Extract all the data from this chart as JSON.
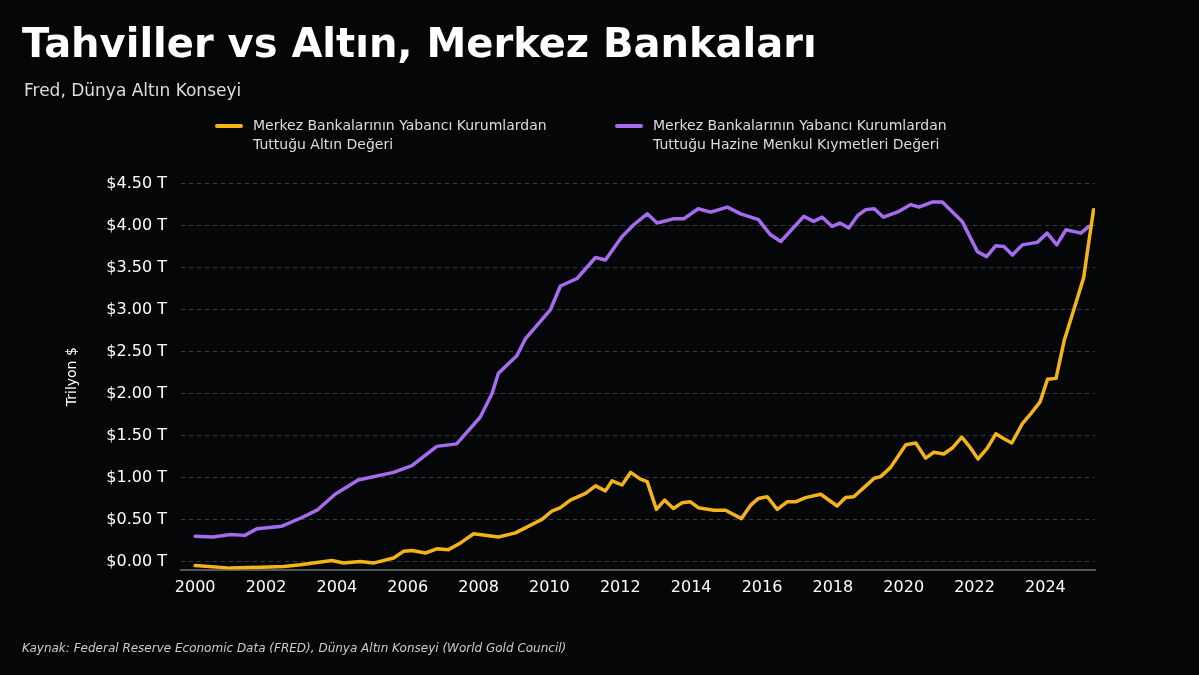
{
  "chart_data": {
    "type": "line",
    "title": "Tahviller vs Altın, Merkez Bankaları",
    "subtitle": "Fred, Dünya Altın Konseyi",
    "ylabel": "Trilyon $",
    "annotations": [
      "Kaynak: Federal Reserve Economic Data (FRED), Dünya Altın Konseyi (World Gold Council)"
    ],
    "xlim": [
      1999.6,
      2025.4
    ],
    "xticks": [
      2000,
      2002,
      2004,
      2006,
      2008,
      2010,
      2012,
      2014,
      2016,
      2018,
      2020,
      2022,
      2024
    ],
    "ylim": [
      -0.1,
      4.5
    ],
    "yticks": [
      {
        "value": 0,
        "label": "$0.00 T"
      },
      {
        "value": 0.5,
        "label": "$0.50 T"
      },
      {
        "value": 1,
        "label": "$1.00 T"
      },
      {
        "value": 1.5,
        "label": "$1.50 T"
      },
      {
        "value": 2,
        "label": "$2.00 T"
      },
      {
        "value": 2.5,
        "label": "$2.50 T"
      },
      {
        "value": 3,
        "label": "$3.00 T"
      },
      {
        "value": 3.5,
        "label": "$3.50 T"
      },
      {
        "value": 4,
        "label": "$4.00 T"
      },
      {
        "value": 4.5,
        "label": "$4.50 T"
      }
    ],
    "grid": "y",
    "legend": "top",
    "marker": "none",
    "line_style": "solid",
    "series": [
      {
        "name": "Merkez Bankalarının Yabancı Kurumlardan Tuttuğu Altın Değeri",
        "color": "#f5b31a",
        "x": [
          2000.0,
          2001.0,
          2002.5,
          2002.97,
          2003.86,
          2004.19,
          2004.66,
          2005.03,
          2005.6,
          2005.88,
          2006.12,
          2006.5,
          2006.82,
          2007.15,
          2007.49,
          2007.86,
          2008.56,
          2009.04,
          2009.32,
          2009.6,
          2009.79,
          2010.07,
          2010.31,
          2010.59,
          2011.02,
          2011.3,
          2011.58,
          2011.77,
          2012.05,
          2012.29,
          2012.57,
          2012.76,
          2013.02,
          2013.25,
          2013.5,
          2013.75,
          2013.98,
          2014.2,
          2014.64,
          2014.97,
          2015.42,
          2015.68,
          2015.9,
          2016.15,
          2016.43,
          2016.71,
          2016.95,
          2017.23,
          2017.66,
          2018.12,
          2018.36,
          2018.59,
          2018.93,
          2019.17,
          2019.35,
          2019.63,
          2020.06,
          2020.34,
          2020.62,
          2020.85,
          2021.13,
          2021.37,
          2021.64,
          2021.87,
          2022.1,
          2022.36,
          2022.6,
          2022.83,
          2023.05,
          2023.35,
          2023.59,
          2023.85,
          2024.06,
          2024.3,
          2024.53,
          2024.81,
          2025.08,
          2025.23,
          2025.36
        ],
        "values": [
          -0.05,
          -0.08,
          -0.06,
          -0.04,
          0.01,
          -0.02,
          0.0,
          -0.02,
          0.04,
          0.12,
          0.13,
          0.1,
          0.15,
          0.14,
          0.22,
          0.33,
          0.29,
          0.34,
          0.4,
          0.46,
          0.5,
          0.6,
          0.64,
          0.73,
          0.81,
          0.9,
          0.84,
          0.96,
          0.91,
          1.06,
          0.98,
          0.95,
          0.62,
          0.73,
          0.63,
          0.7,
          0.71,
          0.64,
          0.61,
          0.61,
          0.51,
          0.67,
          0.75,
          0.77,
          0.62,
          0.71,
          0.71,
          0.76,
          0.8,
          0.66,
          0.76,
          0.77,
          0.9,
          0.99,
          1.01,
          1.12,
          1.39,
          1.41,
          1.23,
          1.3,
          1.28,
          1.35,
          1.48,
          1.36,
          1.22,
          1.35,
          1.52,
          1.46,
          1.41,
          1.64,
          1.76,
          1.9,
          2.17,
          2.18,
          2.63,
          3.01,
          3.38,
          3.82,
          4.19
        ]
      },
      {
        "name": "Merkez Bankalarının Yabancı Kurumlardan Tuttuğu Hazine Menkul Kıymetleri Değeri",
        "color": "#a66cf0",
        "x": [
          2000.0,
          2000.5,
          2001.0,
          2001.4,
          2001.75,
          2002.45,
          2003.0,
          2003.44,
          2003.95,
          2004.6,
          2005.6,
          2006.12,
          2006.82,
          2007.38,
          2008.05,
          2008.38,
          2008.56,
          2009.08,
          2009.32,
          2010.03,
          2010.31,
          2010.78,
          2011.3,
          2011.58,
          2012.05,
          2012.38,
          2012.76,
          2013.04,
          2013.5,
          2013.79,
          2014.2,
          2014.55,
          2015.02,
          2015.4,
          2015.9,
          2016.24,
          2016.53,
          2017.18,
          2017.46,
          2017.7,
          2017.98,
          2018.2,
          2018.45,
          2018.7,
          2018.93,
          2019.17,
          2019.43,
          2019.87,
          2020.2,
          2020.43,
          2020.8,
          2021.09,
          2021.65,
          2022.08,
          2022.34,
          2022.6,
          2022.83,
          2023.07,
          2023.35,
          2023.77,
          2024.05,
          2024.32,
          2024.58,
          2025.0,
          2025.23
        ],
        "values": [
          0.3,
          0.29,
          0.32,
          0.31,
          0.39,
          0.42,
          0.52,
          0.61,
          0.8,
          0.97,
          1.06,
          1.14,
          1.37,
          1.4,
          1.72,
          2.0,
          2.24,
          2.45,
          2.65,
          3.0,
          3.28,
          3.37,
          3.62,
          3.59,
          3.87,
          4.01,
          4.14,
          4.03,
          4.08,
          4.08,
          4.2,
          4.16,
          4.22,
          4.14,
          4.07,
          3.89,
          3.81,
          4.11,
          4.05,
          4.1,
          3.99,
          4.03,
          3.97,
          4.12,
          4.19,
          4.2,
          4.1,
          4.17,
          4.25,
          4.22,
          4.28,
          4.28,
          4.05,
          3.69,
          3.63,
          3.76,
          3.75,
          3.65,
          3.77,
          3.8,
          3.91,
          3.77,
          3.95,
          3.91,
          3.99
        ]
      }
    ]
  }
}
